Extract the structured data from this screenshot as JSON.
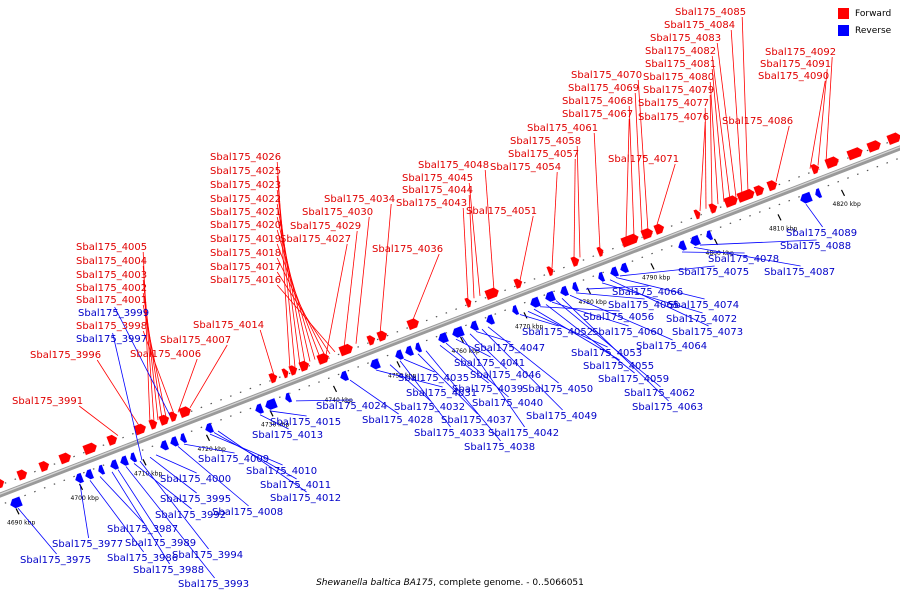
{
  "caption": {
    "organism": "Shewanella baltica BA175",
    "rest": ", complete genome. - 0..5066051"
  },
  "legend": [
    {
      "label": "Forward",
      "color": "#ff0000"
    },
    {
      "label": "Reverse",
      "color": "#0000ff"
    }
  ],
  "colors": {
    "forward": "#ff0000",
    "reverse": "#0000ff",
    "forward_label": "#e00000",
    "reverse_label": "#0000c8",
    "axis": "#777777"
  },
  "scale_ticks": [
    "4690 kbp",
    "4700 kbp",
    "4710 kbp",
    "4720 kbp",
    "4730 kbp",
    "4740 kbp",
    "4750 kbp",
    "4760 kbp",
    "4770 kbp",
    "4780 kbp",
    "4790 kbp",
    "4800 kbp",
    "4810 kbp",
    "4820 kbp"
  ],
  "forward_genes": [
    "Sbal175_3991",
    "Sbal175_3996",
    "Sbal175_3998",
    "Sbal175_3999",
    "Sbal175_4001",
    "Sbal175_4002",
    "Sbal175_4003",
    "Sbal175_4004",
    "Sbal175_4005",
    "Sbal175_4006",
    "Sbal175_4007",
    "Sbal175_4014",
    "Sbal175_4016",
    "Sbal175_4017",
    "Sbal175_4018",
    "Sbal175_4019",
    "Sbal175_4020",
    "Sbal175_4021",
    "Sbal175_4022",
    "Sbal175_4023",
    "Sbal175_4025",
    "Sbal175_4026",
    "Sbal175_4027",
    "Sbal175_4029",
    "Sbal175_4030",
    "Sbal175_4034",
    "Sbal175_4036",
    "Sbal175_4043",
    "Sbal175_4044",
    "Sbal175_4045",
    "Sbal175_4048",
    "Sbal175_4051",
    "Sbal175_4054",
    "Sbal175_4057",
    "Sbal175_4058",
    "Sbal175_4061",
    "Sbal175_4067",
    "Sbal175_4068",
    "Sbal175_4069",
    "Sbal175_4070",
    "Sbal175_4071",
    "Sbal175_4076",
    "Sbal175_4077",
    "Sbal175_4079",
    "Sbal175_4080",
    "Sbal175_4081",
    "Sbal175_4082",
    "Sbal175_4083",
    "Sbal175_4084",
    "Sbal175_4085",
    "Sbal175_4086",
    "Sbal175_4090",
    "Sbal175_4091",
    "Sbal175_4092"
  ],
  "reverse_genes": [
    "Sbal175_3975",
    "Sbal175_3977",
    "Sbal175_3986",
    "Sbal175_3987",
    "Sbal175_3988",
    "Sbal175_3989",
    "Sbal175_3992",
    "Sbal175_3993",
    "Sbal175_3994",
    "Sbal175_3995",
    "Sbal175_3997",
    "Sbal175_4000",
    "Sbal175_4008",
    "Sbal175_4009",
    "Sbal175_4010",
    "Sbal175_4011",
    "Sbal175_4012",
    "Sbal175_4013",
    "Sbal175_4015",
    "Sbal175_4024",
    "Sbal175_4028",
    "Sbal175_4031",
    "Sbal175_4032",
    "Sbal175_4033",
    "Sbal175_4035",
    "Sbal175_4037",
    "Sbal175_4038",
    "Sbal175_4039",
    "Sbal175_4040",
    "Sbal175_4041",
    "Sbal175_4042",
    "Sbal175_4046",
    "Sbal175_4047",
    "Sbal175_4049",
    "Sbal175_4050",
    "Sbal175_4052",
    "Sbal175_4053",
    "Sbal175_4055",
    "Sbal175_4056",
    "Sbal175_4059",
    "Sbal175_4060",
    "Sbal175_4062",
    "Sbal175_4063",
    "Sbal175_4064",
    "Sbal175_4065",
    "Sbal175_4066",
    "Sbal175_4072",
    "Sbal175_4073",
    "Sbal175_4074",
    "Sbal175_4075",
    "Sbal175_4078",
    "Sbal175_4087",
    "Sbal175_4088",
    "Sbal175_4089"
  ]
}
